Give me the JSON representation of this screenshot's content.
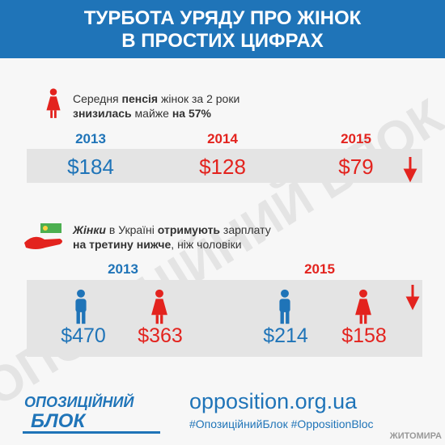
{
  "header": {
    "title_lines": [
      "ТУРБОТА УРЯДУ ПРО ЖІНОК",
      "В ПРОСТИХ ЦИФРАХ"
    ]
  },
  "pension": {
    "line1": [
      "Середня ",
      "пенсія",
      " жінок за 2 роки"
    ],
    "line2": [
      "знизилась",
      " майже ",
      "на 57%"
    ],
    "years": [
      "2013",
      "2014",
      "2015"
    ],
    "values": [
      "$184",
      "$128",
      "$79"
    ]
  },
  "salary": {
    "line1": [
      "Жінки",
      " в Україні ",
      "отримують",
      " зарплату"
    ],
    "line2": [
      "на третину нижче",
      ", ніж чоловіки"
    ],
    "years": [
      "2013",
      "2015"
    ],
    "values": [
      "$470",
      "$363",
      "$214",
      "$158"
    ]
  },
  "footer": {
    "logo": [
      "ОПОЗИЦІЙНИЙ",
      "БЛОК"
    ],
    "url": "opposition.org.ua",
    "hashtags": "#ОпозиційнийБлок #OppositionBloc",
    "corner": "ЖИТОМИРА"
  },
  "watermark": "ОПОЗИЦІЙНИЙ БЛОК"
}
